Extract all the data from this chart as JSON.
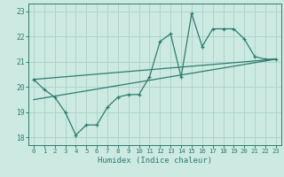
{
  "xlabel": "Humidex (Indice chaleur)",
  "bg_color": "#cce9e2",
  "grid_color": "#aed4cb",
  "line_color": "#2e7d6e",
  "xlim": [
    -0.5,
    23.5
  ],
  "ylim": [
    17.7,
    23.3
  ],
  "xticks": [
    0,
    1,
    2,
    3,
    4,
    5,
    6,
    7,
    8,
    9,
    10,
    11,
    12,
    13,
    14,
    15,
    16,
    17,
    18,
    19,
    20,
    21,
    22,
    23
  ],
  "yticks": [
    18,
    19,
    20,
    21,
    22,
    23
  ],
  "line1_x": [
    0,
    1,
    2,
    3,
    4,
    5,
    6,
    7,
    8,
    9,
    10,
    11,
    12,
    13,
    14,
    15,
    16,
    17,
    18,
    19,
    20,
    21,
    22,
    23
  ],
  "line1_y": [
    20.3,
    19.9,
    19.6,
    19.0,
    18.1,
    18.5,
    18.5,
    19.2,
    19.6,
    19.7,
    19.7,
    20.4,
    21.8,
    22.1,
    20.4,
    22.9,
    21.6,
    22.3,
    22.3,
    22.3,
    21.9,
    21.2,
    21.1,
    21.1
  ],
  "line2_x": [
    0,
    23
  ],
  "line2_y": [
    20.3,
    21.1
  ],
  "line3_x": [
    0,
    23
  ],
  "line3_y": [
    19.5,
    21.1
  ]
}
